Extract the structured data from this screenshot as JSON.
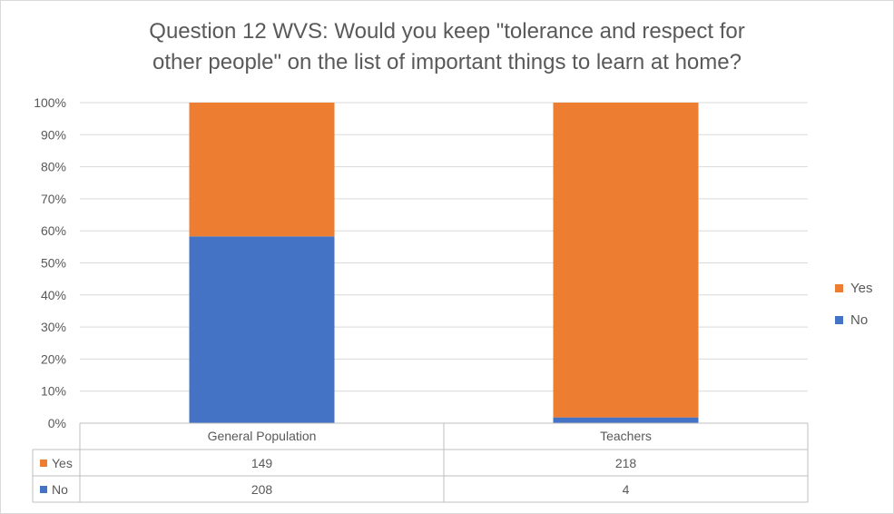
{
  "chart_data": {
    "type": "bar",
    "stacked": "percent",
    "title_line1": "Question 12 WVS: Would you keep \"tolerance and respect for",
    "title_line2": "other people\" on the list of important things to learn at home?",
    "categories": [
      "General Population",
      "Teachers"
    ],
    "series": [
      {
        "name": "No",
        "values": [
          208,
          4
        ],
        "color": "#4472C4"
      },
      {
        "name": "Yes",
        "values": [
          149,
          218
        ],
        "color": "#ED7D31"
      }
    ],
    "yticks": [
      "0%",
      "10%",
      "20%",
      "30%",
      "40%",
      "50%",
      "60%",
      "70%",
      "80%",
      "90%",
      "100%"
    ],
    "ylim": [
      0,
      100
    ],
    "grid": true,
    "legend_position": "right",
    "data_table": true
  },
  "legend": {
    "yes_label": "Yes",
    "no_label": "No",
    "yes_color": "#ED7D31",
    "no_color": "#4472C4"
  }
}
